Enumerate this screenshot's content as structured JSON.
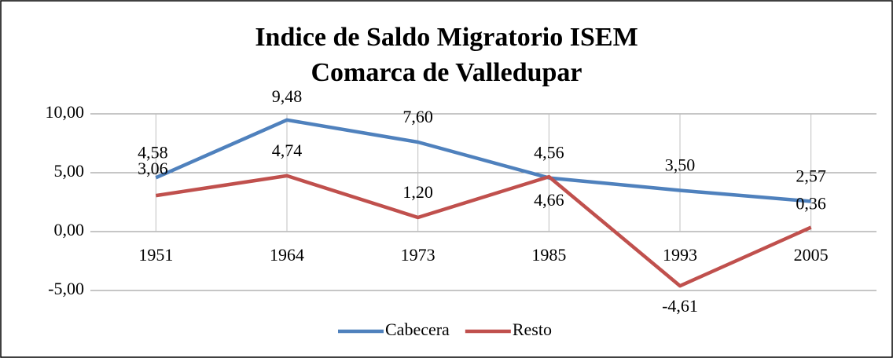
{
  "chart_data": {
    "type": "line",
    "title": [
      "Indice de Saldo Migratorio ISEM",
      "Comarca de Valledupar"
    ],
    "categories": [
      "1951",
      "1964",
      "1973",
      "1985",
      "1993",
      "2005"
    ],
    "series": [
      {
        "name": "Cabecera",
        "color": "#4f81bd",
        "values": [
          4.58,
          9.48,
          7.6,
          4.56,
          3.5,
          2.57
        ],
        "value_labels": [
          "4,58",
          "9,48",
          "7,60",
          "4,56",
          "3,50",
          "2,57"
        ]
      },
      {
        "name": "Resto",
        "color": "#c0504d",
        "values": [
          3.06,
          4.74,
          1.2,
          4.66,
          -4.61,
          0.36
        ],
        "value_labels": [
          "3,06",
          "4,74",
          "1,20",
          "4,66",
          "-4,61",
          "0,36"
        ]
      }
    ],
    "ylim": [
      -5,
      10
    ],
    "yticks": [
      {
        "value": -5,
        "label": "-5,00"
      },
      {
        "value": 0,
        "label": "0,00"
      },
      {
        "value": 5,
        "label": "5,00"
      },
      {
        "value": 10,
        "label": "10,00"
      }
    ],
    "grid": true,
    "legend": "bottom"
  }
}
